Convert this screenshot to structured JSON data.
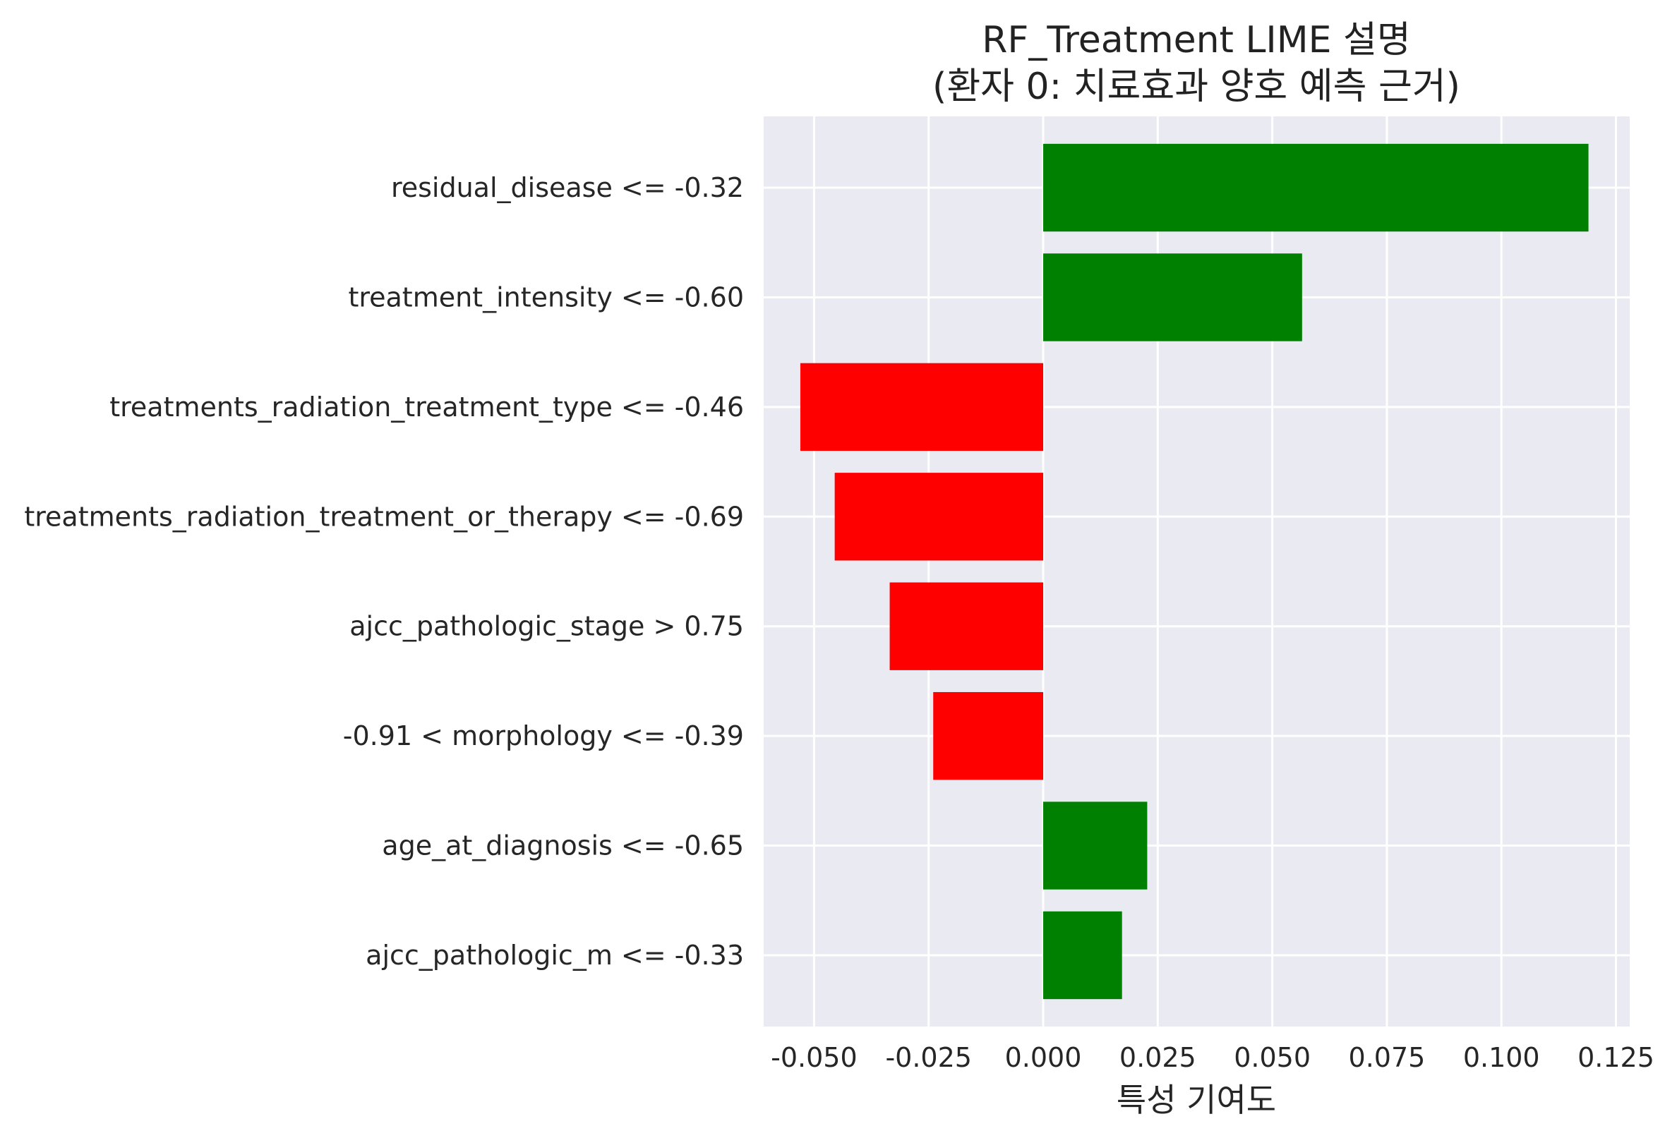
{
  "chart_data": {
    "type": "bar",
    "orientation": "horizontal",
    "title_line1": "RF_Treatment LIME 설명",
    "title_line2": "(환자 0: 치료효과 양호 예측 근거)",
    "xlabel": "특성 기여도",
    "ylabel": "",
    "xlim": [
      -0.061,
      0.128
    ],
    "xticks": [
      -0.05,
      -0.025,
      0.0,
      0.025,
      0.05,
      0.075,
      0.1,
      0.125
    ],
    "xtick_labels": [
      "-0.050",
      "-0.025",
      "0.000",
      "0.025",
      "0.050",
      "0.075",
      "0.100",
      "0.125"
    ],
    "grid": true,
    "categories": [
      "residual_disease <= -0.32",
      "treatment_intensity <= -0.60",
      "treatments_radiation_treatment_type <= -0.46",
      "treatments_radiation_treatment_or_therapy <= -0.69",
      "ajcc_pathologic_stage > 0.75",
      "-0.91 < morphology <= -0.39",
      "age_at_diagnosis <= -0.65",
      "ajcc_pathologic_m <= -0.33"
    ],
    "values": [
      0.119,
      0.0565,
      -0.053,
      -0.0455,
      -0.0335,
      -0.024,
      0.0227,
      0.0172
    ],
    "colors": {
      "positive": "#008000",
      "negative": "#ff0000",
      "plot_background": "#eaeaf2",
      "grid": "#ffffff"
    }
  }
}
